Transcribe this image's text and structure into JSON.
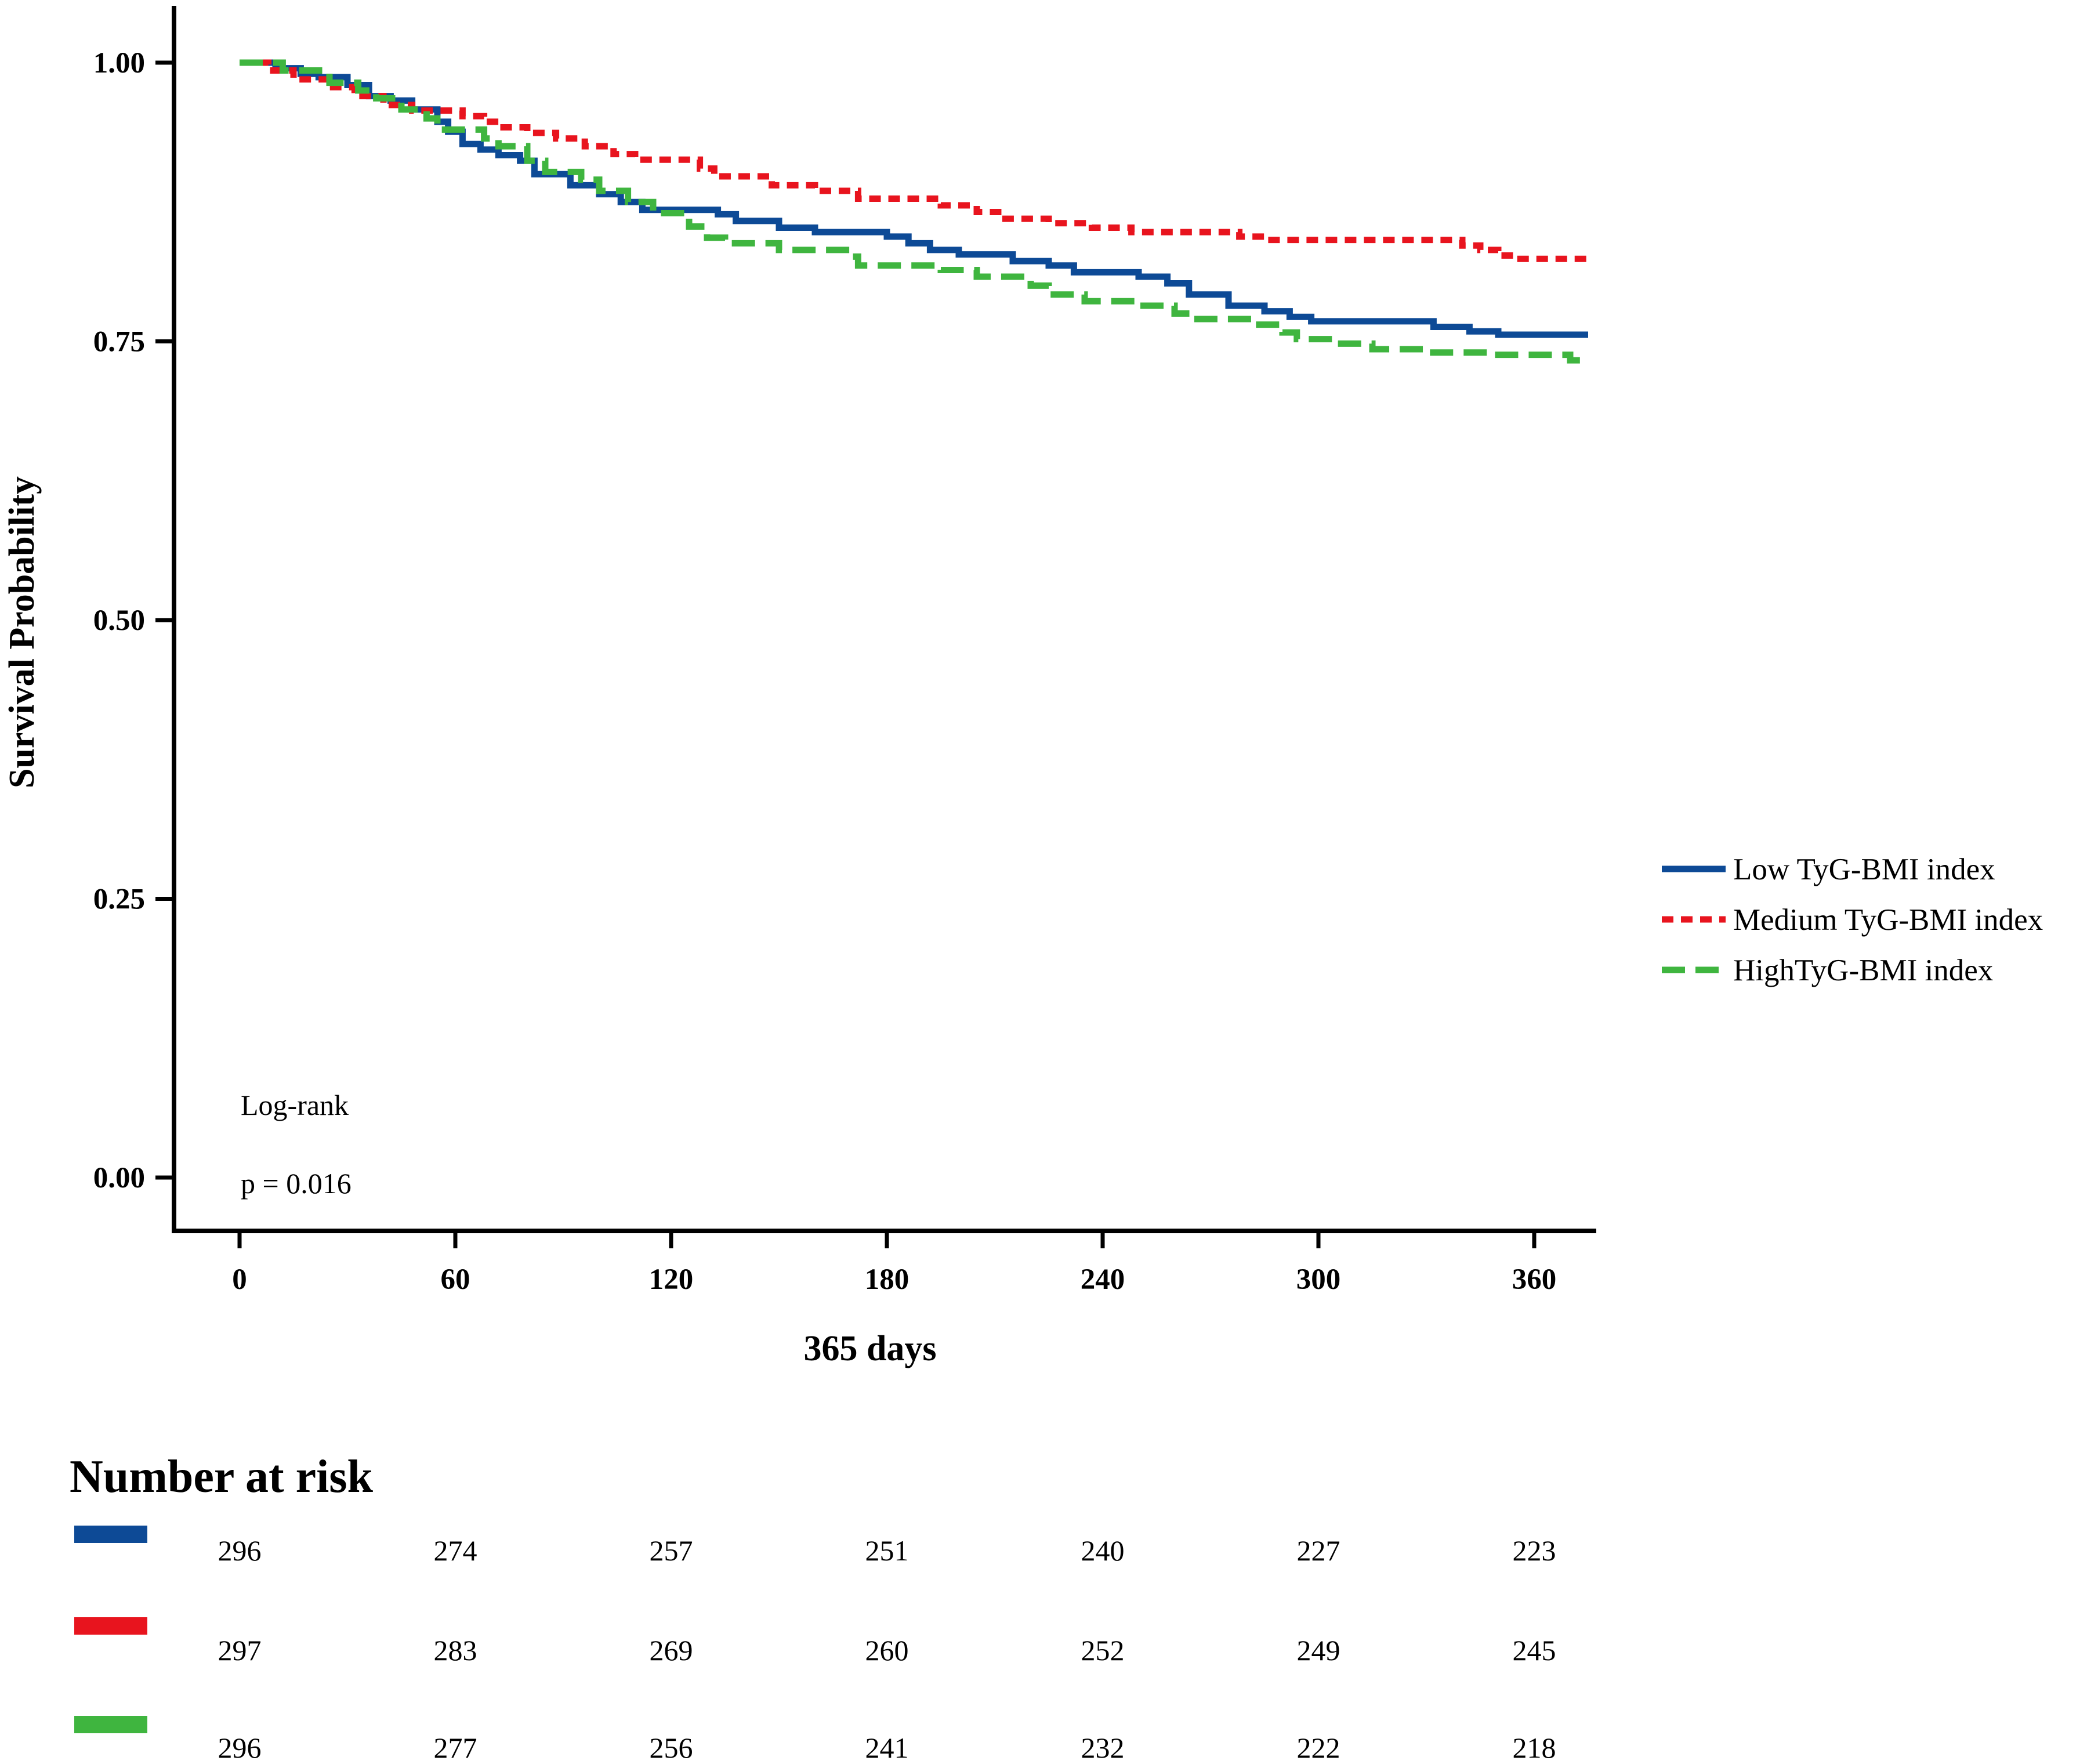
{
  "chart_data": {
    "type": "line",
    "subtype": "kaplan-meier",
    "xlabel": "365 days",
    "ylabel": "Survival Probability",
    "xlim": [
      -12,
      375
    ],
    "ylim": [
      -0.05,
      1.05
    ],
    "x_ticks": [
      0,
      60,
      120,
      180,
      240,
      300,
      360
    ],
    "y_ticks": [
      0.0,
      0.25,
      0.5,
      0.75,
      1.0
    ],
    "y_tick_labels": [
      "0.00",
      "0.25",
      "0.50",
      "0.75",
      "1.00"
    ],
    "annotations": [
      "Log-rank",
      "p = 0.016"
    ],
    "legend_position": "right",
    "series": [
      {
        "name": "Low TyG-BMI index",
        "color": "#0d4a96",
        "style": "solid",
        "steps": [
          [
            0,
            1.0
          ],
          [
            10,
            0.995
          ],
          [
            17,
            0.99
          ],
          [
            22,
            0.987
          ],
          [
            30,
            0.98
          ],
          [
            36,
            0.97
          ],
          [
            42,
            0.966
          ],
          [
            48,
            0.958
          ],
          [
            55,
            0.947
          ],
          [
            58,
            0.938
          ],
          [
            62,
            0.927
          ],
          [
            67,
            0.922
          ],
          [
            72,
            0.917
          ],
          [
            78,
            0.912
          ],
          [
            82,
            0.9
          ],
          [
            92,
            0.89
          ],
          [
            100,
            0.882
          ],
          [
            106,
            0.875
          ],
          [
            112,
            0.868
          ],
          [
            133,
            0.864
          ],
          [
            138,
            0.858
          ],
          [
            150,
            0.852
          ],
          [
            160,
            0.848
          ],
          [
            180,
            0.844
          ],
          [
            186,
            0.838
          ],
          [
            192,
            0.832
          ],
          [
            200,
            0.828
          ],
          [
            215,
            0.822
          ],
          [
            225,
            0.818
          ],
          [
            232,
            0.812
          ],
          [
            250,
            0.808
          ],
          [
            258,
            0.802
          ],
          [
            264,
            0.792
          ],
          [
            275,
            0.782
          ],
          [
            285,
            0.777
          ],
          [
            292,
            0.772
          ],
          [
            298,
            0.768
          ],
          [
            332,
            0.763
          ],
          [
            342,
            0.759
          ],
          [
            350,
            0.756
          ],
          [
            375,
            0.756
          ]
        ]
      },
      {
        "name": "Medium TyG-BMI index",
        "color": "#e8141e",
        "style": "dotted",
        "steps": [
          [
            0,
            1.0
          ],
          [
            8,
            0.993
          ],
          [
            15,
            0.985
          ],
          [
            25,
            0.978
          ],
          [
            32,
            0.97
          ],
          [
            40,
            0.962
          ],
          [
            48,
            0.957
          ],
          [
            62,
            0.952
          ],
          [
            68,
            0.947
          ],
          [
            72,
            0.942
          ],
          [
            80,
            0.937
          ],
          [
            88,
            0.932
          ],
          [
            96,
            0.925
          ],
          [
            104,
            0.918
          ],
          [
            110,
            0.913
          ],
          [
            128,
            0.905
          ],
          [
            132,
            0.898
          ],
          [
            148,
            0.89
          ],
          [
            160,
            0.885
          ],
          [
            172,
            0.878
          ],
          [
            195,
            0.872
          ],
          [
            205,
            0.866
          ],
          [
            212,
            0.86
          ],
          [
            225,
            0.856
          ],
          [
            237,
            0.852
          ],
          [
            248,
            0.848
          ],
          [
            278,
            0.844
          ],
          [
            285,
            0.841
          ],
          [
            340,
            0.836
          ],
          [
            345,
            0.832
          ],
          [
            350,
            0.827
          ],
          [
            355,
            0.824
          ],
          [
            375,
            0.824
          ]
        ]
      },
      {
        "name": "HighTyG-BMI index",
        "color": "#3fb53f",
        "style": "dashed",
        "steps": [
          [
            0,
            1.0
          ],
          [
            12,
            0.993
          ],
          [
            25,
            0.982
          ],
          [
            33,
            0.975
          ],
          [
            38,
            0.968
          ],
          [
            45,
            0.958
          ],
          [
            52,
            0.95
          ],
          [
            55,
            0.94
          ],
          [
            68,
            0.932
          ],
          [
            72,
            0.925
          ],
          [
            80,
            0.912
          ],
          [
            85,
            0.902
          ],
          [
            95,
            0.895
          ],
          [
            100,
            0.885
          ],
          [
            108,
            0.875
          ],
          [
            115,
            0.865
          ],
          [
            125,
            0.853
          ],
          [
            130,
            0.843
          ],
          [
            135,
            0.838
          ],
          [
            150,
            0.832
          ],
          [
            170,
            0.826
          ],
          [
            172,
            0.818
          ],
          [
            195,
            0.814
          ],
          [
            205,
            0.808
          ],
          [
            220,
            0.8
          ],
          [
            225,
            0.792
          ],
          [
            235,
            0.786
          ],
          [
            250,
            0.782
          ],
          [
            260,
            0.775
          ],
          [
            265,
            0.77
          ],
          [
            282,
            0.765
          ],
          [
            290,
            0.758
          ],
          [
            294,
            0.752
          ],
          [
            305,
            0.748
          ],
          [
            315,
            0.743
          ],
          [
            330,
            0.74
          ],
          [
            348,
            0.738
          ],
          [
            370,
            0.733
          ],
          [
            375,
            0.733
          ]
        ]
      }
    ],
    "risk_table": {
      "title": "Number at risk",
      "times": [
        0,
        60,
        120,
        180,
        240,
        300,
        360
      ],
      "rows": [
        {
          "group": "Low TyG-BMI index",
          "color": "#0d4a96",
          "counts": [
            296,
            274,
            257,
            251,
            240,
            227,
            223
          ]
        },
        {
          "group": "Medium TyG-BMI index",
          "color": "#e8141e",
          "counts": [
            297,
            283,
            269,
            260,
            252,
            249,
            245
          ]
        },
        {
          "group": "HighTyG-BMI index",
          "color": "#3fb53f",
          "counts": [
            296,
            277,
            256,
            241,
            232,
            222,
            218
          ]
        }
      ]
    }
  }
}
